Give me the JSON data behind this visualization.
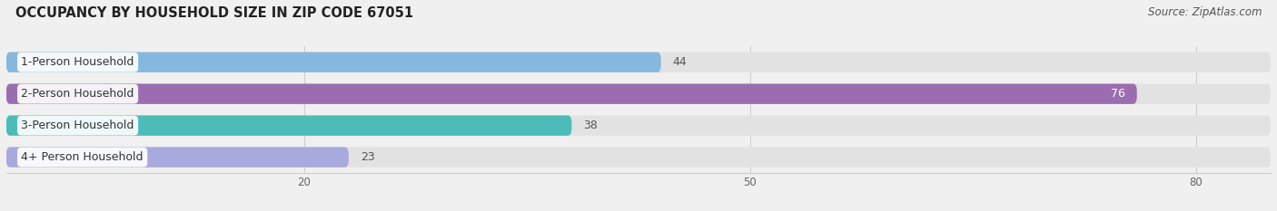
{
  "title": "OCCUPANCY BY HOUSEHOLD SIZE IN ZIP CODE 67051",
  "source": "Source: ZipAtlas.com",
  "categories": [
    "1-Person Household",
    "2-Person Household",
    "3-Person Household",
    "4+ Person Household"
  ],
  "values": [
    44,
    76,
    38,
    23
  ],
  "bar_colors": [
    "#85b8de",
    "#9b6db0",
    "#4dbcb8",
    "#a8aade"
  ],
  "bar_bg_color": "#e2e2e2",
  "xlim_max": 85,
  "xticks": [
    20,
    50,
    80
  ],
  "figsize": [
    14.06,
    2.33
  ],
  "dpi": 100,
  "title_fontsize": 10.5,
  "source_fontsize": 8.5,
  "label_fontsize": 9,
  "value_fontsize": 9,
  "bar_height": 0.62,
  "background_color": "#f0f0f0",
  "label_bg_color": "#ffffff",
  "grid_color": "#cccccc",
  "text_color": "#333333",
  "value_color_inside": "#ffffff",
  "value_color_outside": "#555555"
}
